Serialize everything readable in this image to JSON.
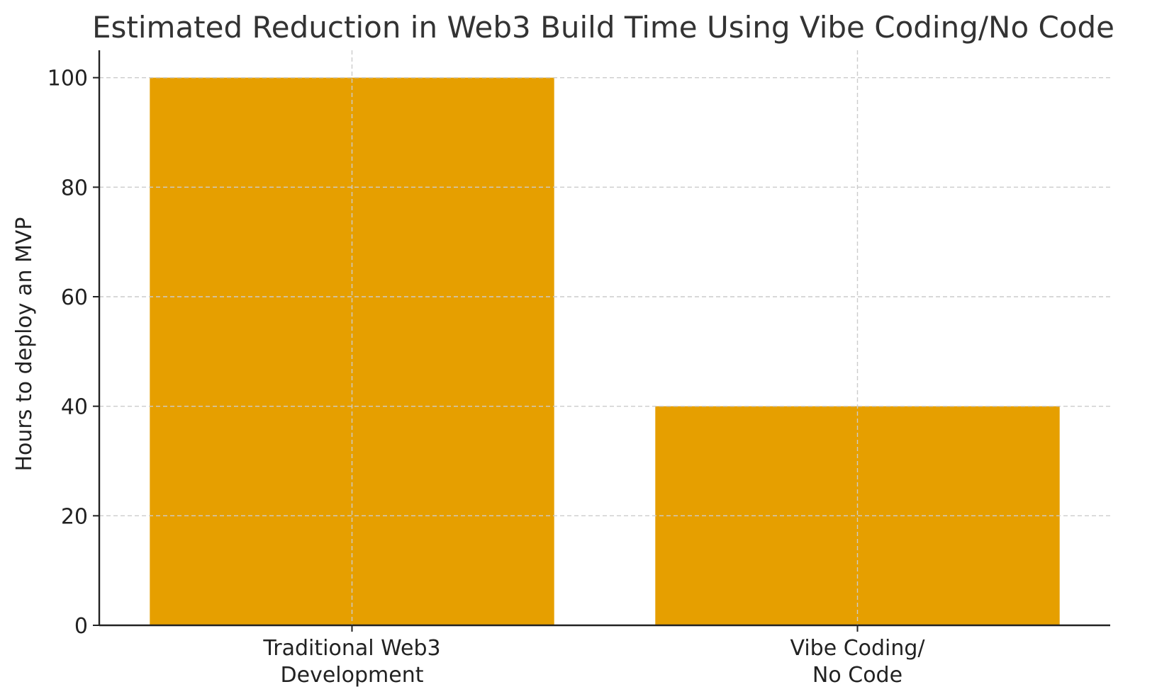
{
  "chart_data": {
    "type": "bar",
    "title": "Estimated Reduction in Web3 Build Time Using Vibe Coding/No Code",
    "xlabel": "",
    "ylabel": "Hours to deploy an MVP",
    "categories": [
      [
        "Traditional Web3",
        "Development"
      ],
      [
        "Vibe Coding/",
        "No Code"
      ]
    ],
    "values": [
      100,
      40
    ],
    "ylim": [
      0,
      105
    ],
    "yticks": [
      0,
      20,
      40,
      60,
      80,
      100
    ],
    "grid": true,
    "legend": "none",
    "colors": {
      "bar": "#E69F00",
      "grid": "#cccccc",
      "axis": "#222222",
      "title": "#333333"
    }
  }
}
